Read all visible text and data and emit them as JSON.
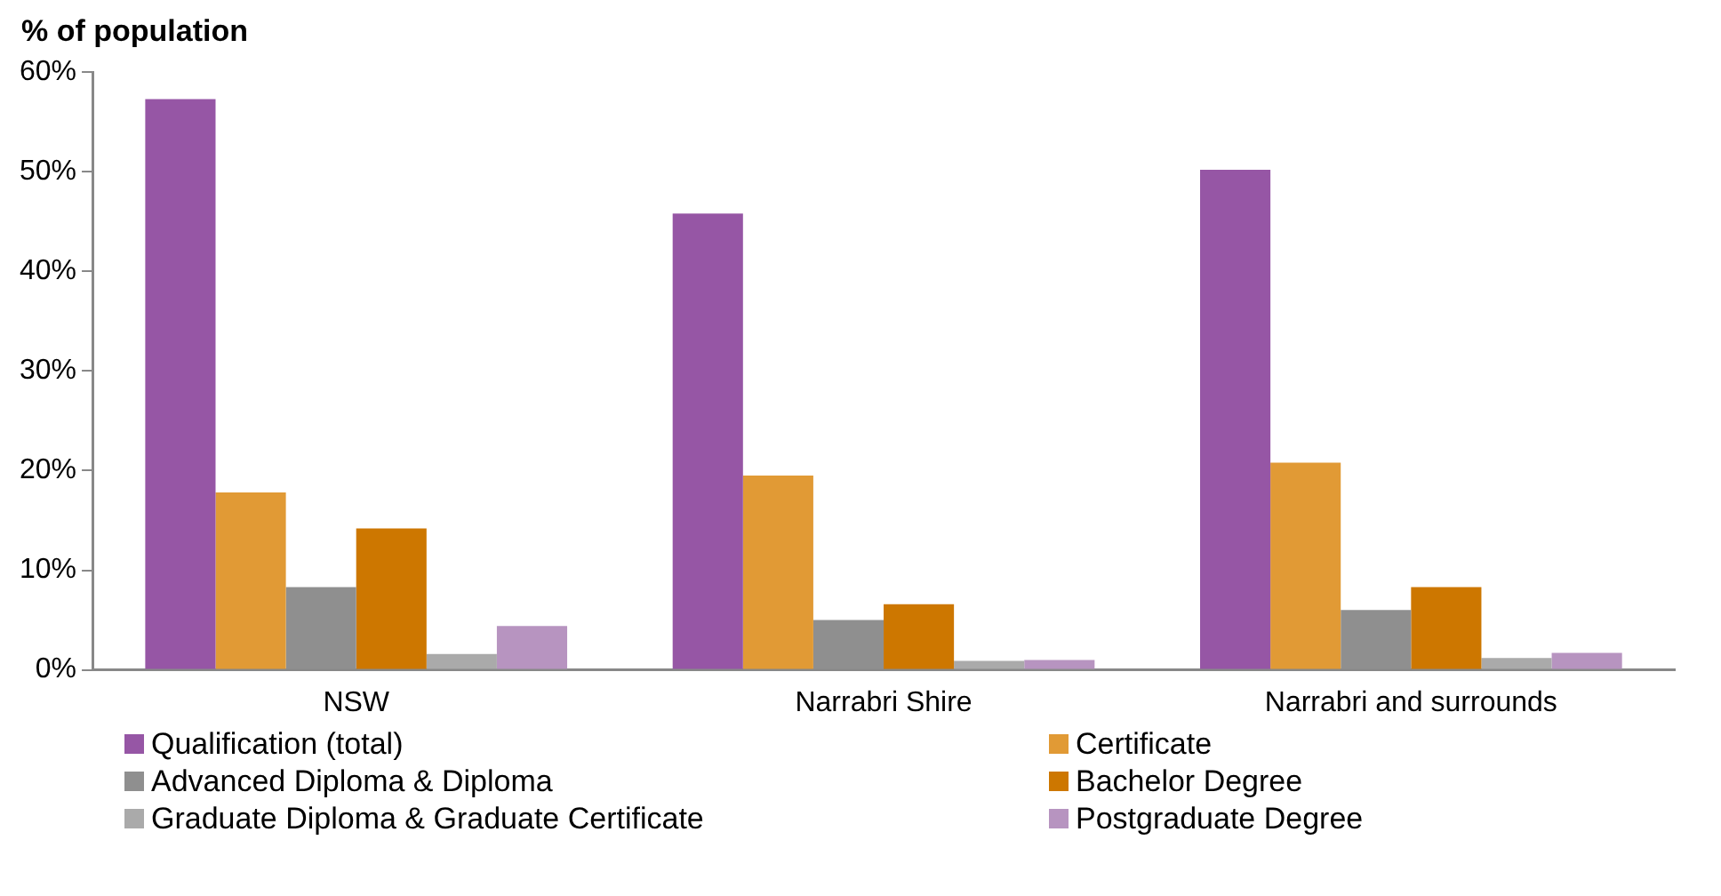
{
  "chart_data": {
    "type": "bar",
    "ylabel": "% of population",
    "categories": [
      "NSW",
      "Narrabri Shire",
      "Narrabri and surrounds"
    ],
    "series": [
      {
        "name": "Qualification (total)",
        "color": "#9656a5",
        "values": [
          57.3,
          45.8,
          50.2
        ]
      },
      {
        "name": "Certificate",
        "color": "#e19a35",
        "values": [
          17.8,
          19.5,
          20.8
        ]
      },
      {
        "name": "Advanced Diploma & Diploma",
        "color": "#8f8f8f",
        "values": [
          8.3,
          5.0,
          6.0
        ]
      },
      {
        "name": "Bachelor Degree",
        "color": "#cd7700",
        "values": [
          14.2,
          6.6,
          8.3
        ]
      },
      {
        "name": "Graduate Diploma & Graduate Certificate",
        "color": "#aaaaaa",
        "values": [
          1.6,
          0.9,
          1.2
        ]
      },
      {
        "name": "Postgraduate Degree",
        "color": "#b794c0",
        "values": [
          4.4,
          1.0,
          1.7
        ]
      }
    ],
    "ylim": [
      0,
      60
    ],
    "yticks": [
      {
        "value": 0,
        "label": "0%"
      },
      {
        "value": 10,
        "label": "10%"
      },
      {
        "value": 20,
        "label": "20%"
      },
      {
        "value": 30,
        "label": "30%"
      },
      {
        "value": 40,
        "label": "40%"
      },
      {
        "value": 50,
        "label": "50%"
      },
      {
        "value": 60,
        "label": "60%"
      }
    ],
    "grid": false,
    "legend": "bottom"
  }
}
